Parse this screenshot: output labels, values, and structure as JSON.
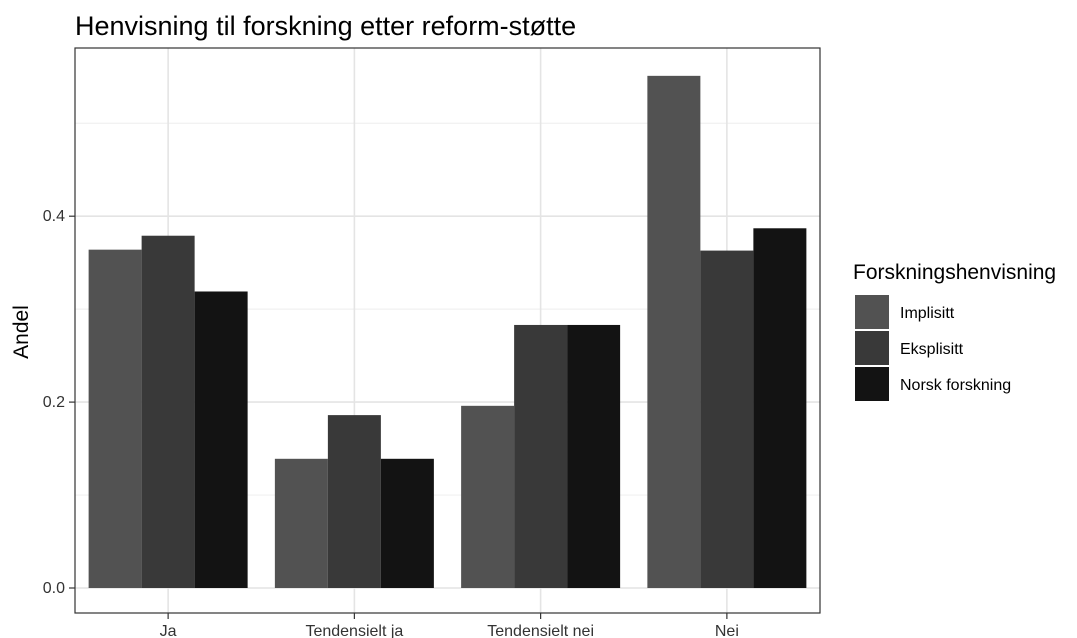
{
  "chart_data": {
    "type": "bar",
    "title": "Henvisning til forskning etter reform-støtte",
    "xlabel": "",
    "ylabel": "Andel",
    "categories": [
      "Ja",
      "Tendensielt ja",
      "Tendensielt nei",
      "Nei"
    ],
    "series": [
      {
        "name": "Implisitt",
        "color": "#525252",
        "values": [
          0.364,
          0.139,
          0.196,
          0.551
        ]
      },
      {
        "name": "Eksplisitt",
        "color": "#393939",
        "values": [
          0.379,
          0.186,
          0.283,
          0.363
        ]
      },
      {
        "name": "Norsk forskning",
        "color": "#131313",
        "values": [
          0.319,
          0.139,
          0.283,
          0.387
        ]
      }
    ],
    "ylim": [
      0,
      0.565
    ],
    "yticks": [
      "0.0",
      "0.2",
      "0.4"
    ],
    "ytick_values": [
      0,
      0.2,
      0.4
    ],
    "legend": {
      "title": "Forskningshenvisning",
      "position": "right"
    },
    "grid": true
  }
}
